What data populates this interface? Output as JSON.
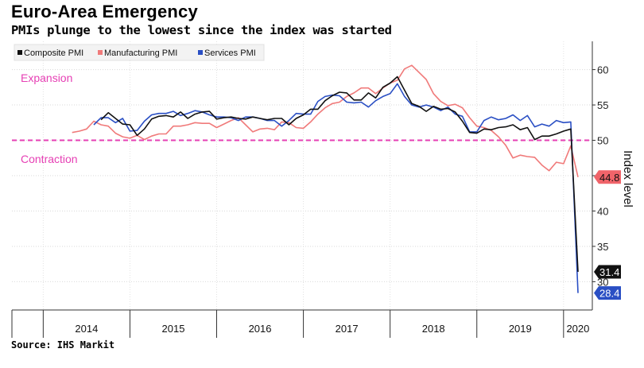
{
  "title": "Euro-Area Emergency",
  "subtitle": "PMIs plunge to the lowest since the index was started",
  "source": "Source: IHS Markit",
  "chart_data": {
    "type": "line",
    "ylabel": "Index level",
    "ylim": [
      26,
      64
    ],
    "yticks": [
      30,
      35,
      40,
      45,
      50,
      55,
      60
    ],
    "grid": true,
    "legend_position": "top-left",
    "x_start": "2013-09",
    "x_end": "2020-03",
    "year_labels": [
      "2014",
      "2015",
      "2016",
      "2017",
      "2018",
      "2019",
      "2020"
    ],
    "threshold": {
      "value": 50,
      "color": "#e63fb4"
    },
    "annotations": {
      "expansion": "Expansion",
      "contraction": "Contraction"
    },
    "colors": {
      "Composite PMI": "#111111",
      "Manufacturing PMI": "#f07a7a",
      "Services PMI": "#2a4fc4"
    },
    "last_labels": {
      "Composite PMI": "31.4",
      "Manufacturing PMI": "44.8",
      "Services PMI": "28.4"
    },
    "series": [
      {
        "name": "Composite PMI",
        "values": [
          52.9,
          53.9,
          53.1,
          52.3,
          52.2,
          50.7,
          51.6,
          53.0,
          53.4,
          53.5,
          53.3,
          54.0,
          53.1,
          53.7,
          54.0,
          54.1,
          53.0,
          53.2,
          53.3,
          53.1,
          53.0,
          53.3,
          53.1,
          52.9,
          53.1,
          53.1,
          52.2,
          53.1,
          53.6,
          54.4,
          54.4,
          55.6,
          56.3,
          56.8,
          56.7,
          55.7,
          55.7,
          56.7,
          56.0,
          57.5,
          58.1,
          59.0,
          57.1,
          55.2,
          54.8,
          54.1,
          54.8,
          54.4,
          54.5,
          54.0,
          52.7,
          51.1,
          51.0,
          51.6,
          51.5,
          51.8,
          51.9,
          52.2,
          51.5,
          51.8,
          50.1,
          50.6,
          50.6,
          50.9,
          51.3,
          51.6,
          31.4
        ]
      },
      {
        "name": "Manufacturing PMI",
        "values": [
          51.1,
          51.3,
          51.6,
          52.7,
          52.2,
          52.0,
          51.0,
          50.5,
          50.3,
          50.7,
          50.1,
          50.6,
          50.9,
          50.9,
          52.0,
          52.0,
          52.2,
          52.5,
          52.4,
          52.4,
          51.8,
          52.3,
          52.8,
          53.2,
          52.2,
          51.2,
          51.6,
          51.7,
          51.5,
          52.6,
          52.5,
          51.8,
          51.7,
          52.6,
          53.7,
          54.6,
          55.2,
          55.4,
          56.2,
          56.7,
          57.4,
          57.4,
          56.6,
          57.4,
          58.1,
          58.5,
          60.1,
          60.6,
          59.6,
          58.6,
          56.6,
          55.5,
          54.9,
          55.1,
          54.6,
          53.2,
          52.0,
          51.8,
          51.4,
          50.5,
          49.3,
          47.5,
          47.9,
          47.7,
          47.6,
          46.5,
          45.7,
          46.9,
          46.7,
          49.2,
          44.8
        ]
      },
      {
        "name": "Services PMI",
        "values": [
          52.2,
          53.2,
          53.2,
          52.5,
          53.1,
          51.3,
          51.4,
          52.7,
          53.6,
          53.8,
          53.8,
          54.1,
          53.5,
          53.8,
          54.2,
          54.0,
          53.6,
          53.3,
          53.3,
          53.2,
          52.8,
          53.3,
          53.3,
          53.1,
          52.8,
          52.8,
          52.0,
          52.8,
          53.8,
          53.7,
          53.7,
          55.5,
          56.2,
          56.4,
          56.3,
          55.4,
          55.3,
          55.4,
          54.7,
          55.6,
          56.2,
          56.6,
          58.0,
          56.2,
          55.0,
          54.7,
          55.0,
          54.7,
          54.2,
          54.7,
          53.7,
          53.4,
          51.2,
          51.2,
          52.8,
          53.3,
          52.9,
          53.1,
          53.6,
          52.8,
          53.5,
          51.9,
          52.3,
          52.0,
          52.8,
          52.5,
          52.6,
          28.4
        ]
      }
    ]
  }
}
